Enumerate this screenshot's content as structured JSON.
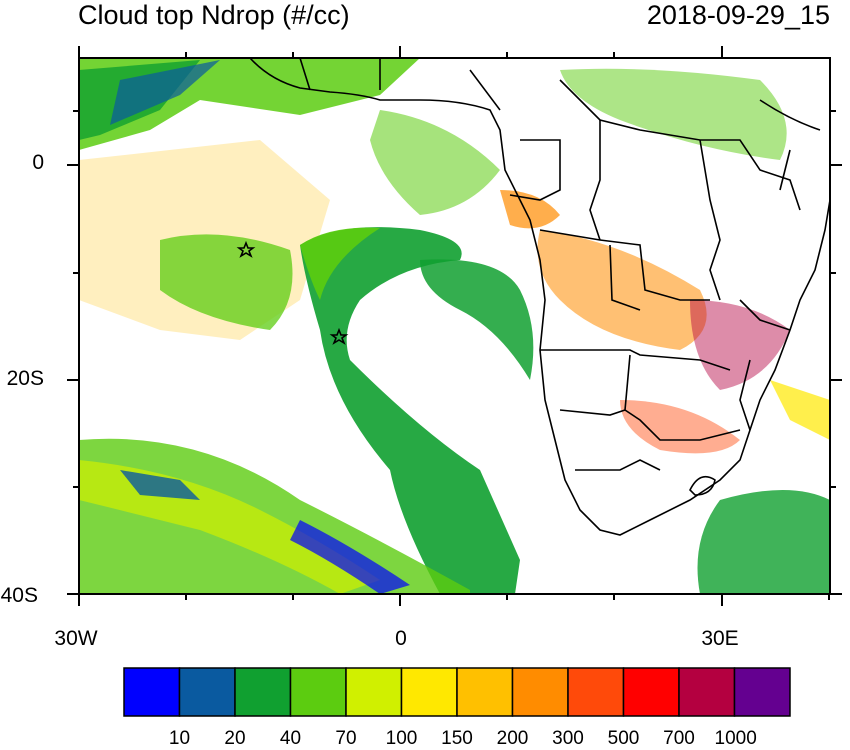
{
  "title": {
    "left": "Cloud top Ndrop (#/cc)",
    "right": "2018-09-29_15"
  },
  "y_axis": {
    "ticks": [
      "0",
      "20S",
      "40S"
    ]
  },
  "x_axis": {
    "ticks": [
      "30W",
      "0",
      "30E"
    ]
  },
  "colorbar": {
    "colors": [
      "#0000ff",
      "#0a5aa0",
      "#10a030",
      "#5ccc10",
      "#d0f000",
      "#ffe800",
      "#ffc000",
      "#ff8c00",
      "#ff4a0a",
      "#ff0000",
      "#b40040",
      "#640090"
    ],
    "labels": [
      "10",
      "20",
      "40",
      "70",
      "100",
      "150",
      "200",
      "300",
      "500",
      "700",
      "1000"
    ]
  },
  "markers": [
    {
      "name": "star-1"
    },
    {
      "name": "star-2"
    }
  ]
}
